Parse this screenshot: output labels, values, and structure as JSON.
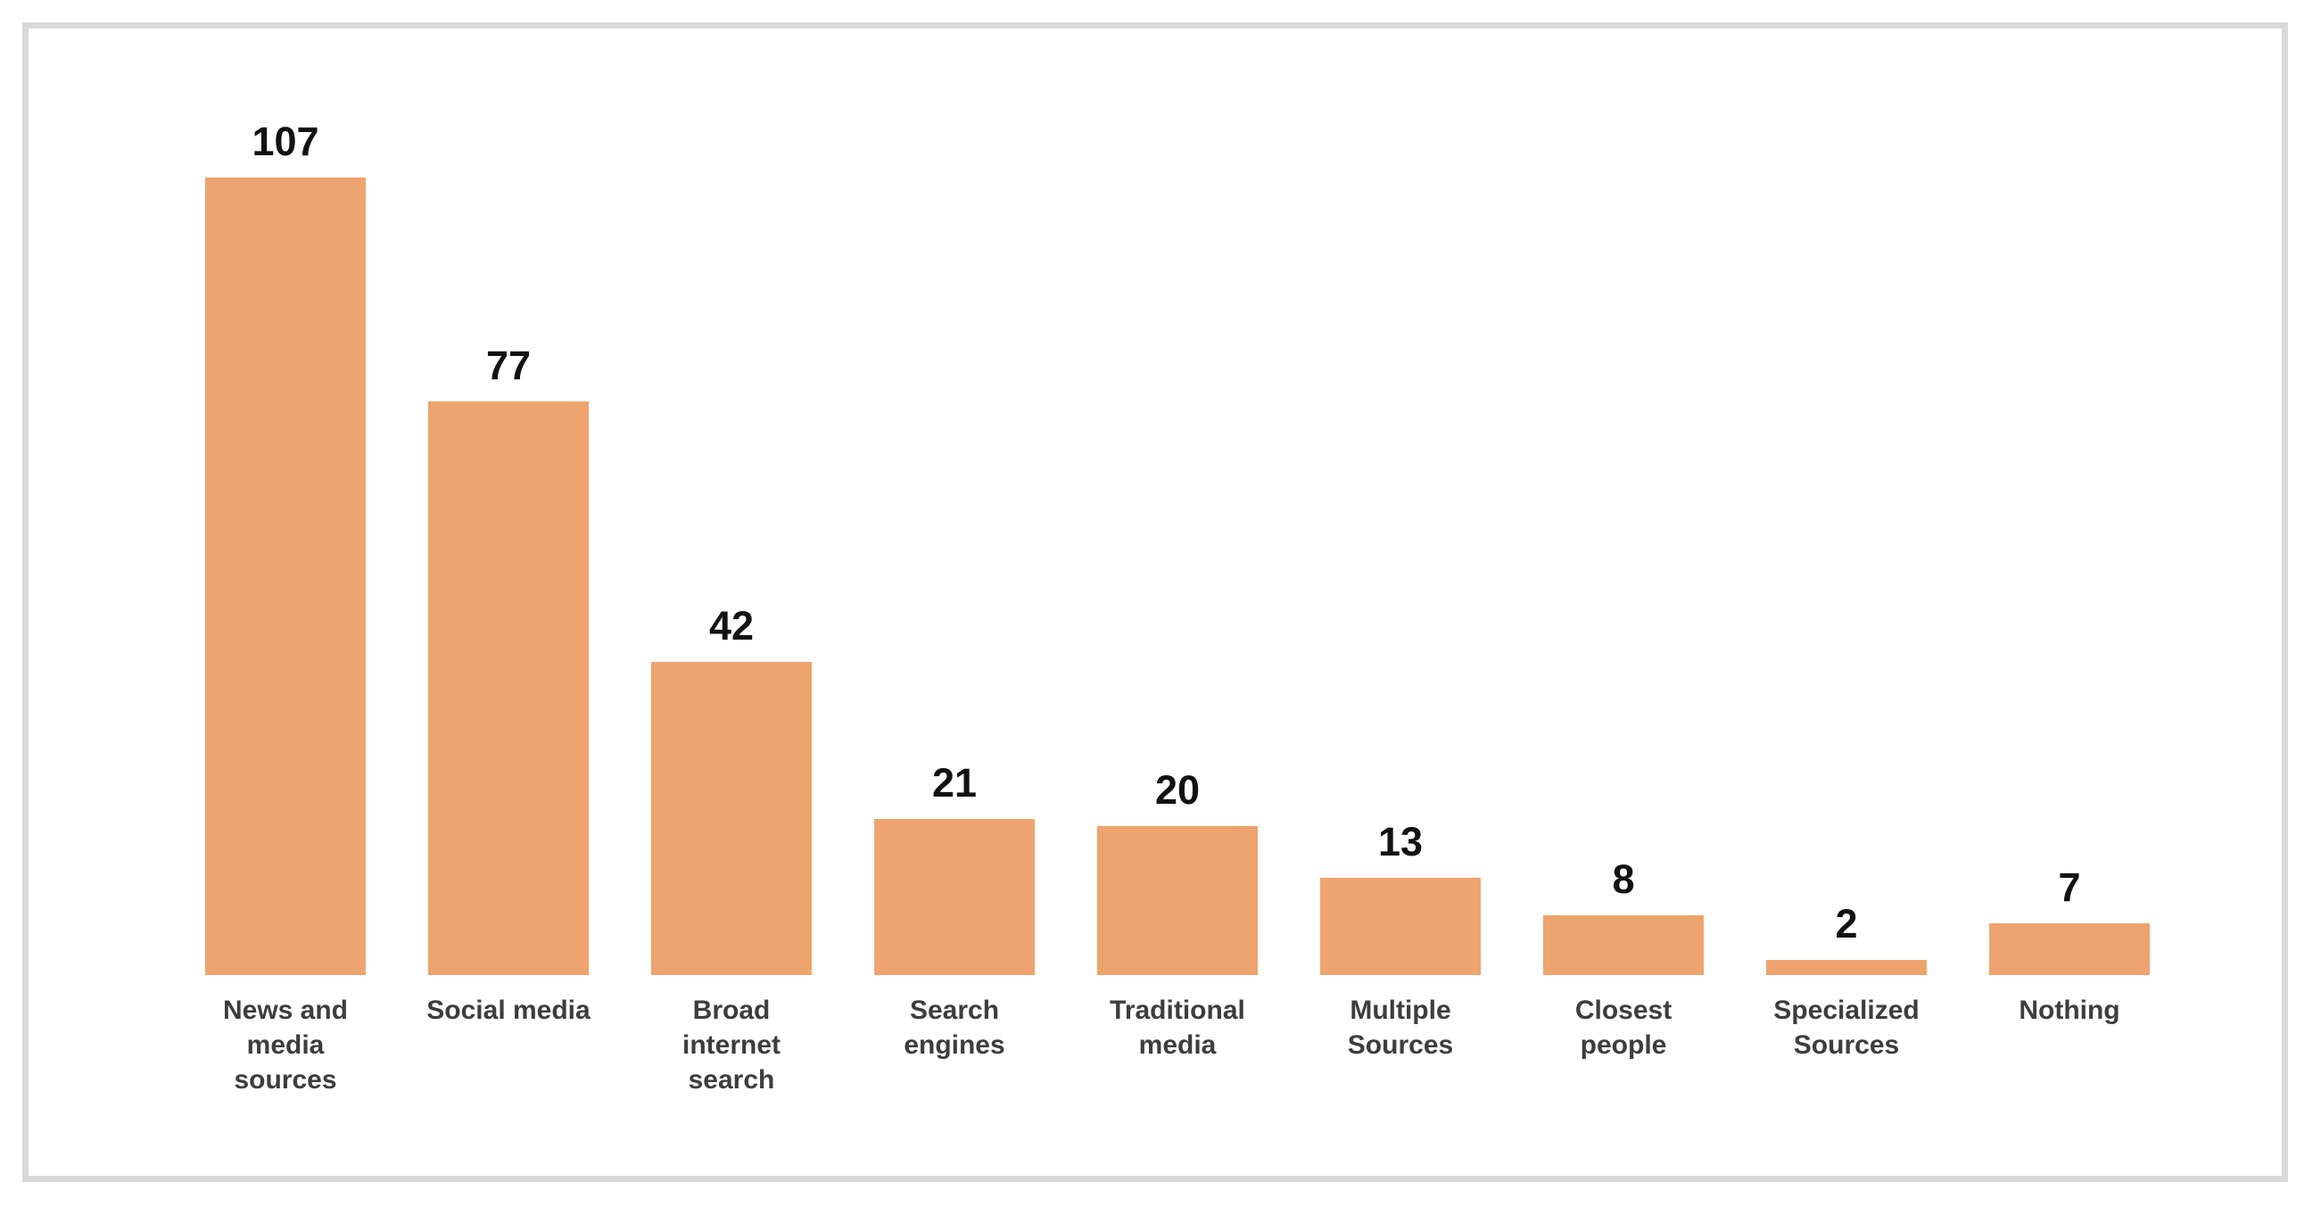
{
  "page": {
    "background_color": "#ffffff",
    "frame_border_color": "#d9d9d9"
  },
  "chart_data": {
    "type": "bar",
    "title": "",
    "xlabel": "",
    "ylabel": "",
    "categories": [
      "News and media sources",
      "Social media",
      "Broad internet search",
      "Search engines",
      "Traditional media",
      "Multiple Sources",
      "Closest people",
      "Specialized Sources",
      "Nothing"
    ],
    "category_label_lines": [
      [
        "News and",
        "media",
        "sources"
      ],
      [
        "Social media"
      ],
      [
        "Broad",
        "internet",
        "search"
      ],
      [
        "Search",
        "engines"
      ],
      [
        "Traditional",
        "media"
      ],
      [
        "Multiple",
        "Sources"
      ],
      [
        "Closest",
        "people"
      ],
      [
        "Specialized",
        "Sources"
      ],
      [
        "Nothing"
      ]
    ],
    "values": [
      107,
      77,
      42,
      21,
      20,
      13,
      8,
      2,
      7
    ],
    "data_labels": [
      "107",
      "77",
      "42",
      "21",
      "20",
      "13",
      "8",
      "2",
      "7"
    ],
    "ylim": [
      0,
      107
    ],
    "grid": false,
    "legend": null,
    "axes_shown": false,
    "bar_color": "#EEA46E",
    "value_label_color": "#121212",
    "category_label_color": "#3d3d3d"
  }
}
